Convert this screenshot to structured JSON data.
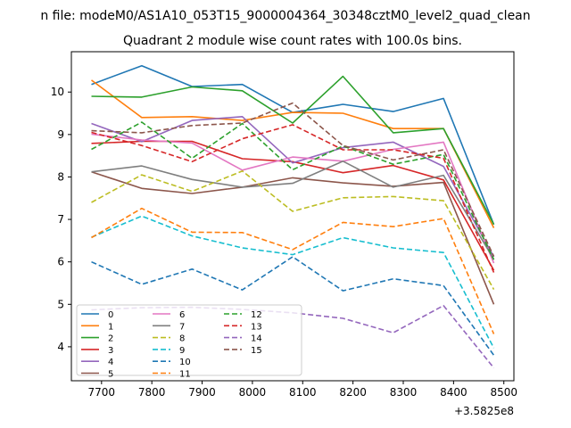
{
  "figure": {
    "suptitle": "n file: modeM0/AS1A10_053T15_9000004364_30348cztM0_level2_quad_clean",
    "title": "Quadrant 2 module wise count rates with 100.0s bins.",
    "offset_label": "+3.5825e8"
  },
  "chart_data": {
    "type": "line",
    "title": "Quadrant 2 module wise count rates with 100.0s bins.",
    "xlabel": "",
    "ylabel": "",
    "x_offset": 358250000,
    "x": [
      7680,
      7780,
      7880,
      7980,
      8080,
      8180,
      8280,
      8380,
      8480
    ],
    "xlim": [
      7640,
      8520
    ],
    "ylim": [
      3.2,
      10.95
    ],
    "xticks": [
      7700,
      7800,
      7900,
      8000,
      8100,
      8200,
      8300,
      8400,
      8500
    ],
    "yticks": [
      4,
      5,
      6,
      7,
      8,
      9,
      10
    ],
    "grid": false,
    "legend": {
      "location": "lower left",
      "columns": 3
    },
    "series": [
      {
        "name": "0",
        "color": "#1f77b4",
        "dash": "solid",
        "values": [
          10.18,
          10.62,
          10.13,
          10.18,
          9.52,
          9.71,
          9.54,
          9.85,
          6.88
        ]
      },
      {
        "name": "1",
        "color": "#ff7f0e",
        "dash": "solid",
        "values": [
          10.28,
          9.4,
          9.42,
          9.33,
          9.52,
          9.5,
          9.14,
          9.14,
          6.8
        ]
      },
      {
        "name": "2",
        "color": "#2ca02c",
        "dash": "solid",
        "values": [
          9.9,
          9.88,
          10.12,
          10.03,
          9.27,
          10.37,
          9.04,
          9.14,
          6.88
        ]
      },
      {
        "name": "3",
        "color": "#d62728",
        "dash": "solid",
        "values": [
          8.79,
          8.84,
          8.84,
          8.43,
          8.36,
          8.1,
          8.27,
          7.93,
          5.8
        ]
      },
      {
        "name": "4",
        "color": "#9467bd",
        "dash": "solid",
        "values": [
          9.26,
          8.83,
          9.33,
          9.42,
          8.33,
          8.69,
          8.82,
          8.25,
          6.12
        ]
      },
      {
        "name": "5",
        "color": "#8c564b",
        "dash": "solid",
        "values": [
          8.12,
          7.73,
          7.61,
          7.76,
          7.98,
          7.86,
          7.78,
          7.87,
          5.0
        ]
      },
      {
        "name": "6",
        "color": "#e377c2",
        "dash": "solid",
        "values": [
          9.01,
          8.87,
          8.8,
          8.16,
          8.47,
          8.37,
          8.65,
          8.82,
          5.97
        ]
      },
      {
        "name": "7",
        "color": "#7f7f7f",
        "dash": "solid",
        "values": [
          8.12,
          8.26,
          7.94,
          7.76,
          7.85,
          8.37,
          7.76,
          8.04,
          6.06
        ]
      },
      {
        "name": "8",
        "color": "#bcbd22",
        "dash": "dashed",
        "values": [
          7.4,
          8.05,
          7.66,
          8.14,
          7.19,
          7.51,
          7.54,
          7.44,
          5.35
        ]
      },
      {
        "name": "9",
        "color": "#17becf",
        "dash": "dashed",
        "values": [
          6.58,
          7.08,
          6.61,
          6.33,
          6.17,
          6.57,
          6.33,
          6.22,
          3.97
        ]
      },
      {
        "name": "10",
        "color": "#1f77b4",
        "dash": "dashed",
        "values": [
          6.0,
          5.47,
          5.83,
          5.34,
          6.12,
          5.32,
          5.6,
          5.44,
          3.8
        ]
      },
      {
        "name": "11",
        "color": "#ff7f0e",
        "dash": "dashed",
        "values": [
          6.57,
          7.26,
          6.7,
          6.69,
          6.29,
          6.93,
          6.83,
          7.02,
          4.3
        ]
      },
      {
        "name": "12",
        "color": "#2ca02c",
        "dash": "dashed",
        "values": [
          8.65,
          9.29,
          8.44,
          9.26,
          8.17,
          8.73,
          8.3,
          8.53,
          6.05
        ]
      },
      {
        "name": "13",
        "color": "#d62728",
        "dash": "dashed",
        "values": [
          9.05,
          8.74,
          8.36,
          8.9,
          9.23,
          8.64,
          8.64,
          8.44,
          5.75
        ]
      },
      {
        "name": "14",
        "color": "#9467bd",
        "dash": "dashed",
        "values": [
          4.87,
          4.92,
          4.93,
          4.88,
          4.8,
          4.67,
          4.33,
          4.97,
          3.5
        ]
      },
      {
        "name": "15",
        "color": "#8c564b",
        "dash": "dashed",
        "values": [
          9.09,
          9.04,
          9.21,
          9.27,
          9.74,
          8.74,
          8.4,
          8.64,
          6.13
        ]
      }
    ]
  }
}
